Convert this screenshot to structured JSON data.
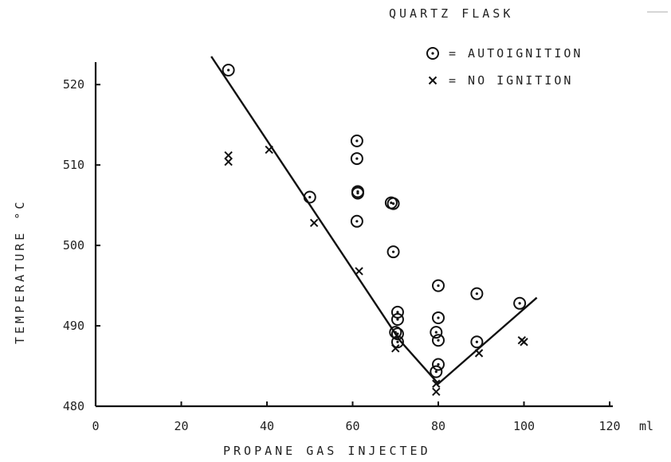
{
  "chart_data": {
    "type": "scatter",
    "title": "QUARTZ   FLASK",
    "xlabel": "PROPANE    GAS    INJECTED",
    "ylabel": "TEMPERATURE   °C",
    "x_unit": "ml",
    "xlim": [
      0,
      120
    ],
    "ylim": [
      480,
      522
    ],
    "x_ticks": [
      0,
      20,
      40,
      60,
      80,
      100,
      120
    ],
    "y_ticks": [
      480,
      490,
      500,
      510,
      520
    ],
    "grid": false,
    "legend_position": "top-right",
    "legend": [
      {
        "symbol": "circle-dot",
        "symbol_char": "⊙",
        "text": "=  AUTOIGNITION"
      },
      {
        "symbol": "cross",
        "symbol_char": "×",
        "text": "=  NO  IGNITION"
      }
    ],
    "series": [
      {
        "name": "AUTOIGNITION",
        "marker": "circle-dot",
        "points": [
          [
            31,
            521.8
          ],
          [
            50,
            506
          ],
          [
            61,
            513
          ],
          [
            61,
            510.8
          ],
          [
            61.2,
            506.7
          ],
          [
            61.2,
            506.5
          ],
          [
            61,
            503
          ],
          [
            69,
            505.3
          ],
          [
            69.5,
            505.2
          ],
          [
            69.5,
            499.2
          ],
          [
            70.5,
            491.7
          ],
          [
            70.5,
            490.8
          ],
          [
            70,
            489.2
          ],
          [
            70.5,
            489
          ],
          [
            70.5,
            488
          ],
          [
            80,
            495
          ],
          [
            80,
            491
          ],
          [
            79.5,
            489.2
          ],
          [
            80,
            488.2
          ],
          [
            80,
            485.2
          ],
          [
            79.5,
            484.3
          ],
          [
            89,
            494
          ],
          [
            89,
            488
          ],
          [
            99,
            492.8
          ]
        ]
      },
      {
        "name": "NO IGNITION",
        "marker": "cross",
        "points": [
          [
            31,
            511.2
          ],
          [
            31,
            510.4
          ],
          [
            40.5,
            511.9
          ],
          [
            51,
            502.8
          ],
          [
            61.5,
            496.8
          ],
          [
            70,
            487.2
          ],
          [
            79.5,
            482.8
          ],
          [
            79.5,
            481.8
          ],
          [
            89.5,
            486.6
          ],
          [
            99.5,
            488.2
          ],
          [
            100,
            488
          ]
        ]
      },
      {
        "name": "",
        "type": "line",
        "points": [
          [
            27,
            523.5
          ],
          [
            71,
            488.2
          ],
          [
            80,
            482.8
          ],
          [
            103,
            493.5
          ]
        ]
      }
    ]
  }
}
